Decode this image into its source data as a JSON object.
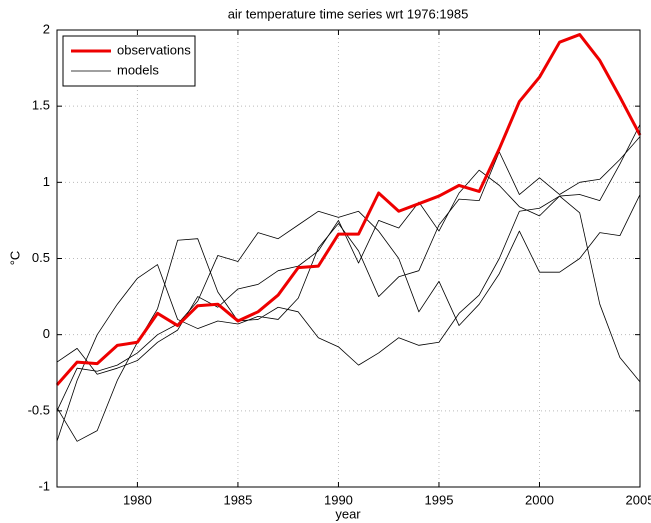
{
  "chart_data": {
    "type": "line",
    "title": "air temperature time series wrt 1976:1985",
    "xlabel": "year",
    "ylabel": "°C",
    "x": [
      1976,
      1977,
      1978,
      1979,
      1980,
      1981,
      1982,
      1983,
      1984,
      1985,
      1986,
      1987,
      1988,
      1989,
      1990,
      1991,
      1992,
      1993,
      1994,
      1995,
      1996,
      1997,
      1998,
      1999,
      2000,
      2001,
      2002,
      2003,
      2004,
      2005
    ],
    "series": [
      {
        "name": "observations",
        "color": "#ee0000",
        "width": 3,
        "values": [
          -0.33,
          -0.18,
          -0.19,
          -0.07,
          -0.05,
          0.14,
          0.06,
          0.19,
          0.2,
          0.09,
          0.15,
          0.26,
          0.44,
          0.45,
          0.66,
          0.66,
          0.93,
          0.81,
          0.86,
          0.91,
          0.98,
          0.94,
          1.22,
          1.53,
          1.69,
          1.92,
          1.97,
          1.8,
          1.56,
          1.31
        ]
      },
      {
        "name": "models",
        "color": "#000000",
        "width": 0.8,
        "members": [
          [
            -0.18,
            -0.09,
            -0.26,
            -0.22,
            -0.17,
            -0.05,
            0.03,
            0.25,
            0.18,
            0.3,
            0.33,
            0.42,
            0.45,
            0.55,
            0.75,
            0.47,
            0.75,
            0.7,
            0.87,
            0.68,
            0.93,
            1.08,
            0.98,
            0.84,
            0.78,
            0.91,
            0.8,
            0.2,
            -0.15,
            -0.31
          ],
          [
            -0.48,
            -0.7,
            -0.63,
            -0.3,
            -0.05,
            0.17,
            0.62,
            0.63,
            0.28,
            0.09,
            0.1,
            0.18,
            0.15,
            -0.02,
            -0.08,
            -0.2,
            -0.12,
            -0.02,
            -0.07,
            -0.05,
            0.14,
            0.26,
            0.5,
            0.81,
            0.83,
            0.91,
            0.92,
            0.88,
            1.12,
            1.38
          ],
          [
            -0.7,
            -0.3,
            0.0,
            0.2,
            0.37,
            0.46,
            0.1,
            0.04,
            0.09,
            0.07,
            0.12,
            0.1,
            0.24,
            0.57,
            0.73,
            0.55,
            0.25,
            0.38,
            0.42,
            0.72,
            0.89,
            0.88,
            1.2,
            0.92,
            1.03,
            0.92,
            1.0,
            1.02,
            1.15,
            1.3
          ],
          [
            -0.5,
            -0.22,
            -0.24,
            -0.2,
            -0.12,
            0.0,
            0.07,
            0.22,
            0.52,
            0.48,
            0.67,
            0.63,
            0.72,
            0.81,
            0.77,
            0.81,
            0.68,
            0.5,
            0.15,
            0.35,
            0.06,
            0.2,
            0.4,
            0.68,
            0.41,
            0.41,
            0.5,
            0.67,
            0.65,
            0.92
          ]
        ]
      }
    ],
    "xlim": [
      1976,
      2005
    ],
    "xticks": [
      1980,
      1985,
      1990,
      1995,
      2000,
      2005
    ],
    "ylim": [
      -1,
      2
    ],
    "yticks": [
      -1,
      -0.5,
      0,
      0.5,
      1,
      1.5,
      2
    ],
    "grid": true,
    "legend": "upper left"
  }
}
